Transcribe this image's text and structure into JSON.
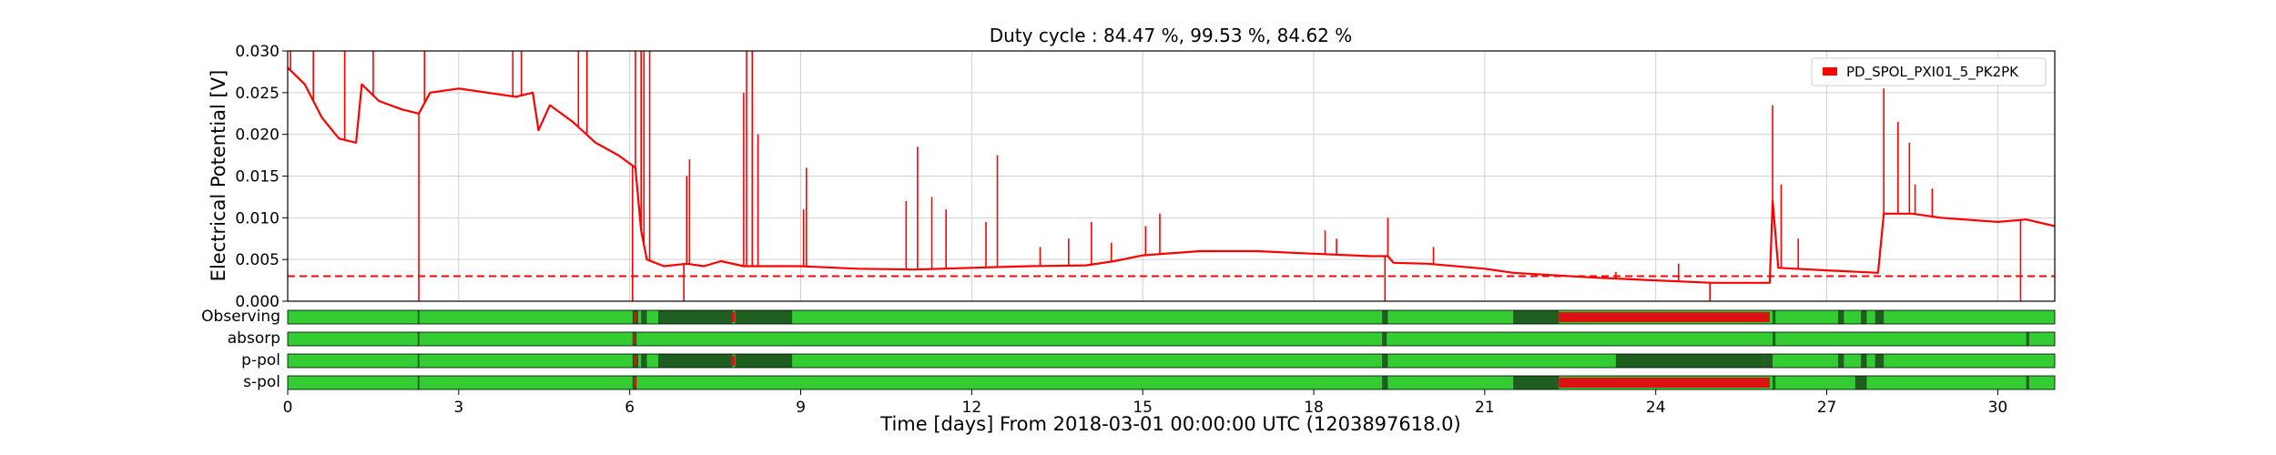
{
  "chart_data": {
    "type": "line",
    "title": "Duty cycle : 84.47 %, 99.53 %, 84.62 %",
    "xlabel": "Time [days] From 2018-03-01 00:00:00 UTC (1203897618.0)",
    "ylabel": "Electrical Potential [V]",
    "xlim": [
      0,
      31
    ],
    "ylim": [
      0,
      0.03
    ],
    "x_ticks": [
      0,
      3,
      6,
      9,
      12,
      15,
      18,
      21,
      24,
      27,
      30
    ],
    "y_ticks": [
      "0.000",
      "0.005",
      "0.010",
      "0.015",
      "0.020",
      "0.025",
      "0.030"
    ],
    "grid": true,
    "legend": {
      "position": "top-right",
      "entries": [
        "PD_SPOL_PXI01_5_PK2PK"
      ]
    },
    "colors": {
      "line": "#ff0000",
      "threshold": "#ff0000",
      "on": "#33cc33",
      "off": "#1e5e1e",
      "bad": "#dd1111"
    },
    "series": [
      {
        "name": "PD_SPOL_PXI01_5_PK2PK",
        "points": [
          [
            0,
            0.028
          ],
          [
            0.3,
            0.026
          ],
          [
            0.6,
            0.022
          ],
          [
            0.9,
            0.0195
          ],
          [
            1.2,
            0.019
          ],
          [
            1.3,
            0.026
          ],
          [
            1.6,
            0.024
          ],
          [
            2.0,
            0.023
          ],
          [
            2.3,
            0.0225
          ],
          [
            2.5,
            0.025
          ],
          [
            3.0,
            0.0255
          ],
          [
            3.5,
            0.025
          ],
          [
            4.0,
            0.0245
          ],
          [
            4.3,
            0.025
          ],
          [
            4.4,
            0.0205
          ],
          [
            4.6,
            0.0235
          ],
          [
            5.0,
            0.0215
          ],
          [
            5.4,
            0.019
          ],
          [
            5.8,
            0.0175
          ],
          [
            6.0,
            0.0165
          ],
          [
            6.1,
            0.016
          ],
          [
            6.2,
            0.0085
          ],
          [
            6.3,
            0.005
          ],
          [
            6.6,
            0.0042
          ],
          [
            7.0,
            0.0045
          ],
          [
            7.3,
            0.0042
          ],
          [
            7.6,
            0.0048
          ],
          [
            8.0,
            0.0042
          ],
          [
            9.0,
            0.0042
          ],
          [
            10.0,
            0.0039
          ],
          [
            11.0,
            0.0038
          ],
          [
            12.0,
            0.004
          ],
          [
            13.0,
            0.0042
          ],
          [
            14.0,
            0.0043
          ],
          [
            14.5,
            0.0048
          ],
          [
            15.0,
            0.0055
          ],
          [
            16.0,
            0.006
          ],
          [
            17.0,
            0.006
          ],
          [
            18.0,
            0.0057
          ],
          [
            19.0,
            0.0054
          ],
          [
            19.3,
            0.0054
          ],
          [
            19.4,
            0.0046
          ],
          [
            20.0,
            0.0045
          ],
          [
            21.0,
            0.0039
          ],
          [
            21.5,
            0.0034
          ],
          [
            22.0,
            0.0032
          ],
          [
            23.0,
            0.0028
          ],
          [
            24.0,
            0.0025
          ],
          [
            25.0,
            0.0022
          ],
          [
            26.0,
            0.0022
          ],
          [
            26.05,
            0.012
          ],
          [
            26.15,
            0.004
          ],
          [
            27.0,
            0.0037
          ],
          [
            27.9,
            0.0034
          ],
          [
            28.0,
            0.0105
          ],
          [
            28.5,
            0.0105
          ],
          [
            29.0,
            0.01
          ],
          [
            30.0,
            0.0095
          ],
          [
            30.5,
            0.0098
          ],
          [
            31.0,
            0.009
          ]
        ],
        "spikes": [
          [
            0.05,
            0.03
          ],
          [
            0.45,
            0.03
          ],
          [
            1.0,
            0.03
          ],
          [
            1.5,
            0.03
          ],
          [
            2.3,
            0.0
          ],
          [
            2.4,
            0.03
          ],
          [
            3.95,
            0.03
          ],
          [
            4.1,
            0.03
          ],
          [
            5.1,
            0.03
          ],
          [
            5.25,
            0.03
          ],
          [
            6.05,
            0.0
          ],
          [
            6.1,
            0.03
          ],
          [
            6.2,
            0.03
          ],
          [
            6.25,
            0.03
          ],
          [
            6.35,
            0.03
          ],
          [
            6.95,
            0.0
          ],
          [
            7.0,
            0.015
          ],
          [
            7.05,
            0.017
          ],
          [
            8.0,
            0.025
          ],
          [
            8.05,
            0.03
          ],
          [
            8.15,
            0.03
          ],
          [
            8.25,
            0.02
          ],
          [
            9.05,
            0.011
          ],
          [
            9.1,
            0.016
          ],
          [
            10.85,
            0.012
          ],
          [
            11.05,
            0.0185
          ],
          [
            11.3,
            0.0125
          ],
          [
            11.55,
            0.011
          ],
          [
            12.25,
            0.0095
          ],
          [
            12.45,
            0.0175
          ],
          [
            13.2,
            0.0065
          ],
          [
            13.7,
            0.0075
          ],
          [
            14.1,
            0.0095
          ],
          [
            14.45,
            0.007
          ],
          [
            15.05,
            0.009
          ],
          [
            15.3,
            0.0105
          ],
          [
            18.2,
            0.0085
          ],
          [
            18.4,
            0.0075
          ],
          [
            19.25,
            0.0
          ],
          [
            19.3,
            0.01
          ],
          [
            20.1,
            0.0065
          ],
          [
            23.3,
            0.0035
          ],
          [
            24.4,
            0.0045
          ],
          [
            24.95,
            0.0
          ],
          [
            26.05,
            0.0235
          ],
          [
            26.2,
            0.014
          ],
          [
            26.5,
            0.0075
          ],
          [
            28.0,
            0.0255
          ],
          [
            28.25,
            0.0215
          ],
          [
            28.45,
            0.019
          ],
          [
            28.55,
            0.014
          ],
          [
            28.85,
            0.0135
          ],
          [
            30.4,
            0.0
          ]
        ]
      }
    ],
    "threshold": 0.003,
    "segment_rows": [
      {
        "name": "Observing",
        "off": [
          [
            2.28,
            2.31
          ],
          [
            6.05,
            6.15
          ],
          [
            6.2,
            6.3
          ],
          [
            6.5,
            7.8
          ],
          [
            7.85,
            8.85
          ],
          [
            19.2,
            19.3
          ],
          [
            21.5,
            22.3
          ],
          [
            26.05,
            26.1
          ],
          [
            27.2,
            27.3
          ],
          [
            27.6,
            27.7
          ],
          [
            27.85,
            28.0
          ]
        ],
        "bad": [
          [
            6.08,
            6.12
          ],
          [
            7.78,
            7.84
          ],
          [
            22.3,
            26.0
          ]
        ]
      },
      {
        "name": "absorp",
        "off": [
          [
            2.28,
            2.31
          ],
          [
            6.05,
            6.12
          ],
          [
            19.2,
            19.28
          ],
          [
            26.05,
            26.1
          ],
          [
            30.5,
            30.55
          ]
        ],
        "bad": [
          [
            6.06,
            6.1
          ]
        ]
      },
      {
        "name": "p-pol",
        "off": [
          [
            2.28,
            2.31
          ],
          [
            6.05,
            6.15
          ],
          [
            6.2,
            6.3
          ],
          [
            6.5,
            7.8
          ],
          [
            7.85,
            8.85
          ],
          [
            19.2,
            19.3
          ],
          [
            23.3,
            25.9
          ],
          [
            25.9,
            26.05
          ],
          [
            27.2,
            27.3
          ],
          [
            27.6,
            27.7
          ],
          [
            27.85,
            28.0
          ]
        ],
        "bad": [
          [
            6.08,
            6.12
          ],
          [
            7.78,
            7.84
          ]
        ]
      },
      {
        "name": "s-pol",
        "off": [
          [
            2.28,
            2.31
          ],
          [
            6.05,
            6.12
          ],
          [
            19.2,
            19.3
          ],
          [
            21.5,
            22.3
          ],
          [
            26.05,
            26.1
          ],
          [
            27.5,
            27.7
          ],
          [
            30.5,
            30.55
          ]
        ],
        "bad": [
          [
            6.08,
            6.12
          ],
          [
            22.3,
            26.0
          ]
        ]
      }
    ]
  }
}
